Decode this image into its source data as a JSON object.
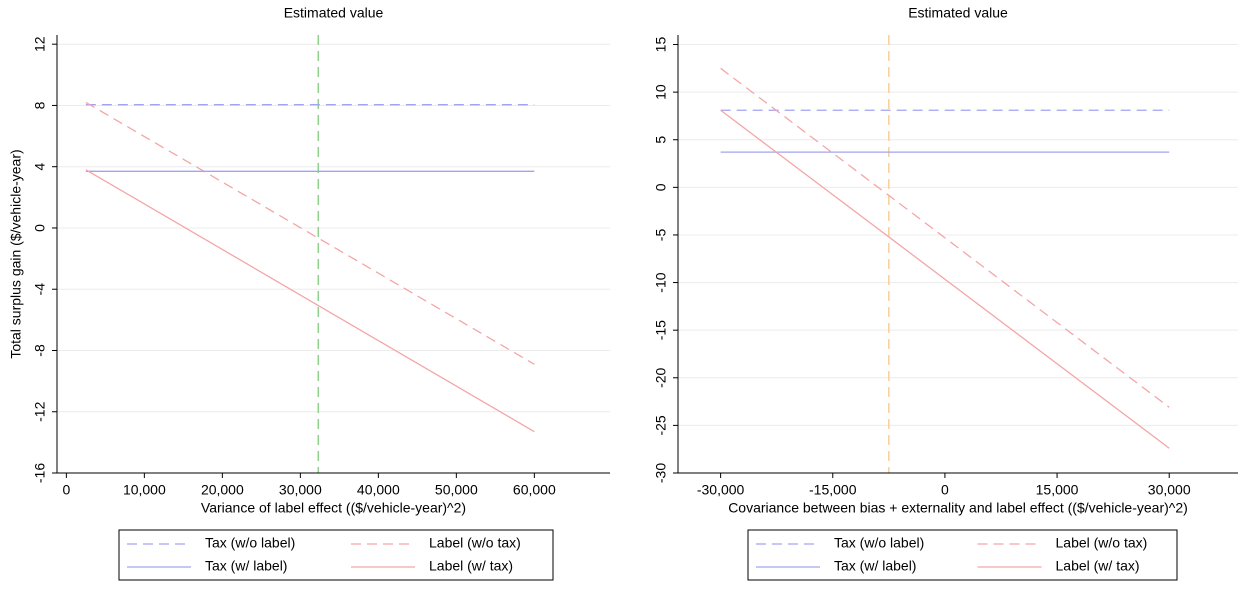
{
  "chart_data": [
    {
      "type": "line",
      "title": "Estimated value",
      "x_label": "Variance of label effect (($/vehicle-year)^2)",
      "y_label": "Total surplus gain ($/vehicle-year)",
      "x": [
        2500,
        60000
      ],
      "xlim": [
        -1200,
        69700
      ],
      "ylim": [
        -16,
        12.6
      ],
      "xticks": [
        0,
        {
          "value": 10000,
          "label": "10,000"
        },
        {
          "value": 20000,
          "label": "20,000"
        },
        {
          "value": 30000,
          "label": "30,000"
        },
        {
          "value": 40000,
          "label": "40,000"
        },
        {
          "value": 50000,
          "label": "50,000"
        },
        {
          "value": 60000,
          "label": "60,000"
        }
      ],
      "yticks": [
        -16,
        -12,
        -8,
        -4,
        0,
        4,
        8,
        12
      ],
      "grid": true,
      "vline": {
        "value": 32300,
        "color": "#8fd08f"
      },
      "series": [
        {
          "name": "Tax (w/o label)",
          "color": "#a3a3f2",
          "dashed": true,
          "values": [
            8.05,
            8.05
          ]
        },
        {
          "name": "Label (w/o tax)",
          "color": "#f4a6a6",
          "dashed": true,
          "values": [
            8.2,
            -8.9
          ]
        },
        {
          "name": "Tax (w/ label)",
          "color": "#a3a3f2",
          "dashed": false,
          "values": [
            3.7,
            3.7
          ]
        },
        {
          "name": "Label (w/ tax)",
          "color": "#f4a6a6",
          "dashed": false,
          "values": [
            3.8,
            -13.3
          ]
        }
      ]
    },
    {
      "type": "line",
      "title": "Estimated value",
      "x_label": "Covariance between bias + externality and label effect (($/vehicle-year)^2)",
      "x": [
        -30000,
        30000
      ],
      "xlim": [
        -35700,
        39200
      ],
      "ylim": [
        -30,
        16
      ],
      "xticks": [
        {
          "value": -30000,
          "label": "-30,000"
        },
        {
          "value": -15000,
          "label": "-15,000"
        },
        0,
        {
          "value": 15000,
          "label": "15,000"
        },
        {
          "value": 30000,
          "label": "30,000"
        }
      ],
      "yticks": [
        -30,
        -25,
        -20,
        -15,
        -10,
        -5,
        0,
        5,
        10,
        15
      ],
      "grid": true,
      "vline": {
        "value": -7500,
        "color": "#f7cf98"
      },
      "series": [
        {
          "name": "Tax (w/o label)",
          "color": "#a3a3f2",
          "dashed": true,
          "values": [
            8.1,
            8.1
          ]
        },
        {
          "name": "Label (w/o tax)",
          "color": "#f4a6a6",
          "dashed": true,
          "values": [
            12.5,
            -23.1
          ]
        },
        {
          "name": "Tax (w/ label)",
          "color": "#a3a3f2",
          "dashed": false,
          "values": [
            3.7,
            3.7
          ]
        },
        {
          "name": "Label (w/ tax)",
          "color": "#f4a6a6",
          "dashed": false,
          "values": [
            8.1,
            -27.4
          ]
        }
      ]
    }
  ]
}
